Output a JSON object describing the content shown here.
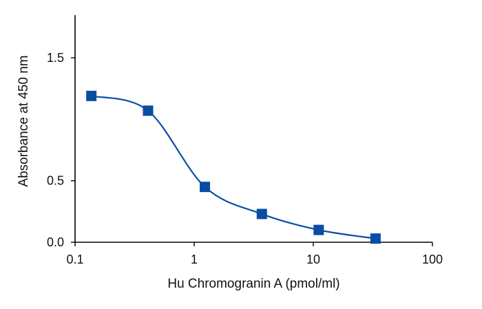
{
  "chart_data": {
    "type": "line",
    "title": "",
    "xlabel": "Hu Chromogranin A (pmol/ml)",
    "ylabel": "Absorbance at 450 nm",
    "x_scale": "log",
    "xlim": [
      0.1,
      100
    ],
    "ylim": [
      0,
      1.8
    ],
    "x_ticks": [
      0.1,
      1,
      10,
      100
    ],
    "x_tick_labels": [
      "0.1",
      "1",
      "10",
      "100"
    ],
    "y_ticks": [
      0.0,
      0.5,
      1.5
    ],
    "y_tick_labels": [
      "0.0",
      "0.5",
      "1.5"
    ],
    "grid": false,
    "legend": "none",
    "series": [
      {
        "marker": "square",
        "color": "#0a4da2",
        "points": [
          {
            "x": 0.137,
            "y": 1.19
          },
          {
            "x": 0.41,
            "y": 1.07
          },
          {
            "x": 1.23,
            "y": 0.45
          },
          {
            "x": 3.7,
            "y": 0.23
          },
          {
            "x": 11.1,
            "y": 0.1
          },
          {
            "x": 33.3,
            "y": 0.03
          }
        ]
      }
    ]
  }
}
